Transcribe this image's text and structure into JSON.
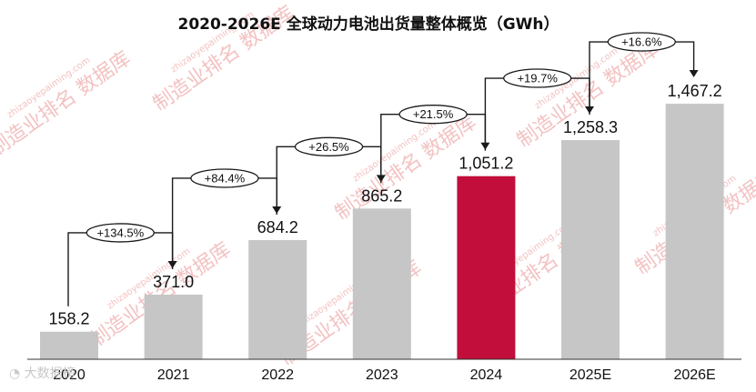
{
  "chart_data": {
    "type": "bar",
    "title": "2020-2026E 全球动力电池出货量整体概览（GWh）",
    "categories": [
      "2020",
      "2021",
      "2022",
      "2023",
      "2024",
      "2025E",
      "2026E"
    ],
    "values": [
      158.2,
      371.0,
      684.2,
      865.2,
      1051.2,
      1258.3,
      1467.2
    ],
    "value_labels": [
      "158.2",
      "371.0",
      "684.2",
      "865.2",
      "1,051.2",
      "1,258.3",
      "1,467.2"
    ],
    "growth_labels": [
      "+134.5%",
      "+84.4%",
      "+26.5%",
      "+21.5%",
      "+19.7%",
      "+16.6%"
    ],
    "highlight_index": 4,
    "colors": {
      "default": "#c6c6c6",
      "highlight": "#c20e3a",
      "axis": "#333333"
    },
    "ylim": [
      0,
      1600
    ],
    "grid": false,
    "legend": "none"
  },
  "watermark": {
    "text": "制造业排名 数据库",
    "url": "zhizaoyepaiming.com"
  },
  "source_logo": "大数据榜"
}
